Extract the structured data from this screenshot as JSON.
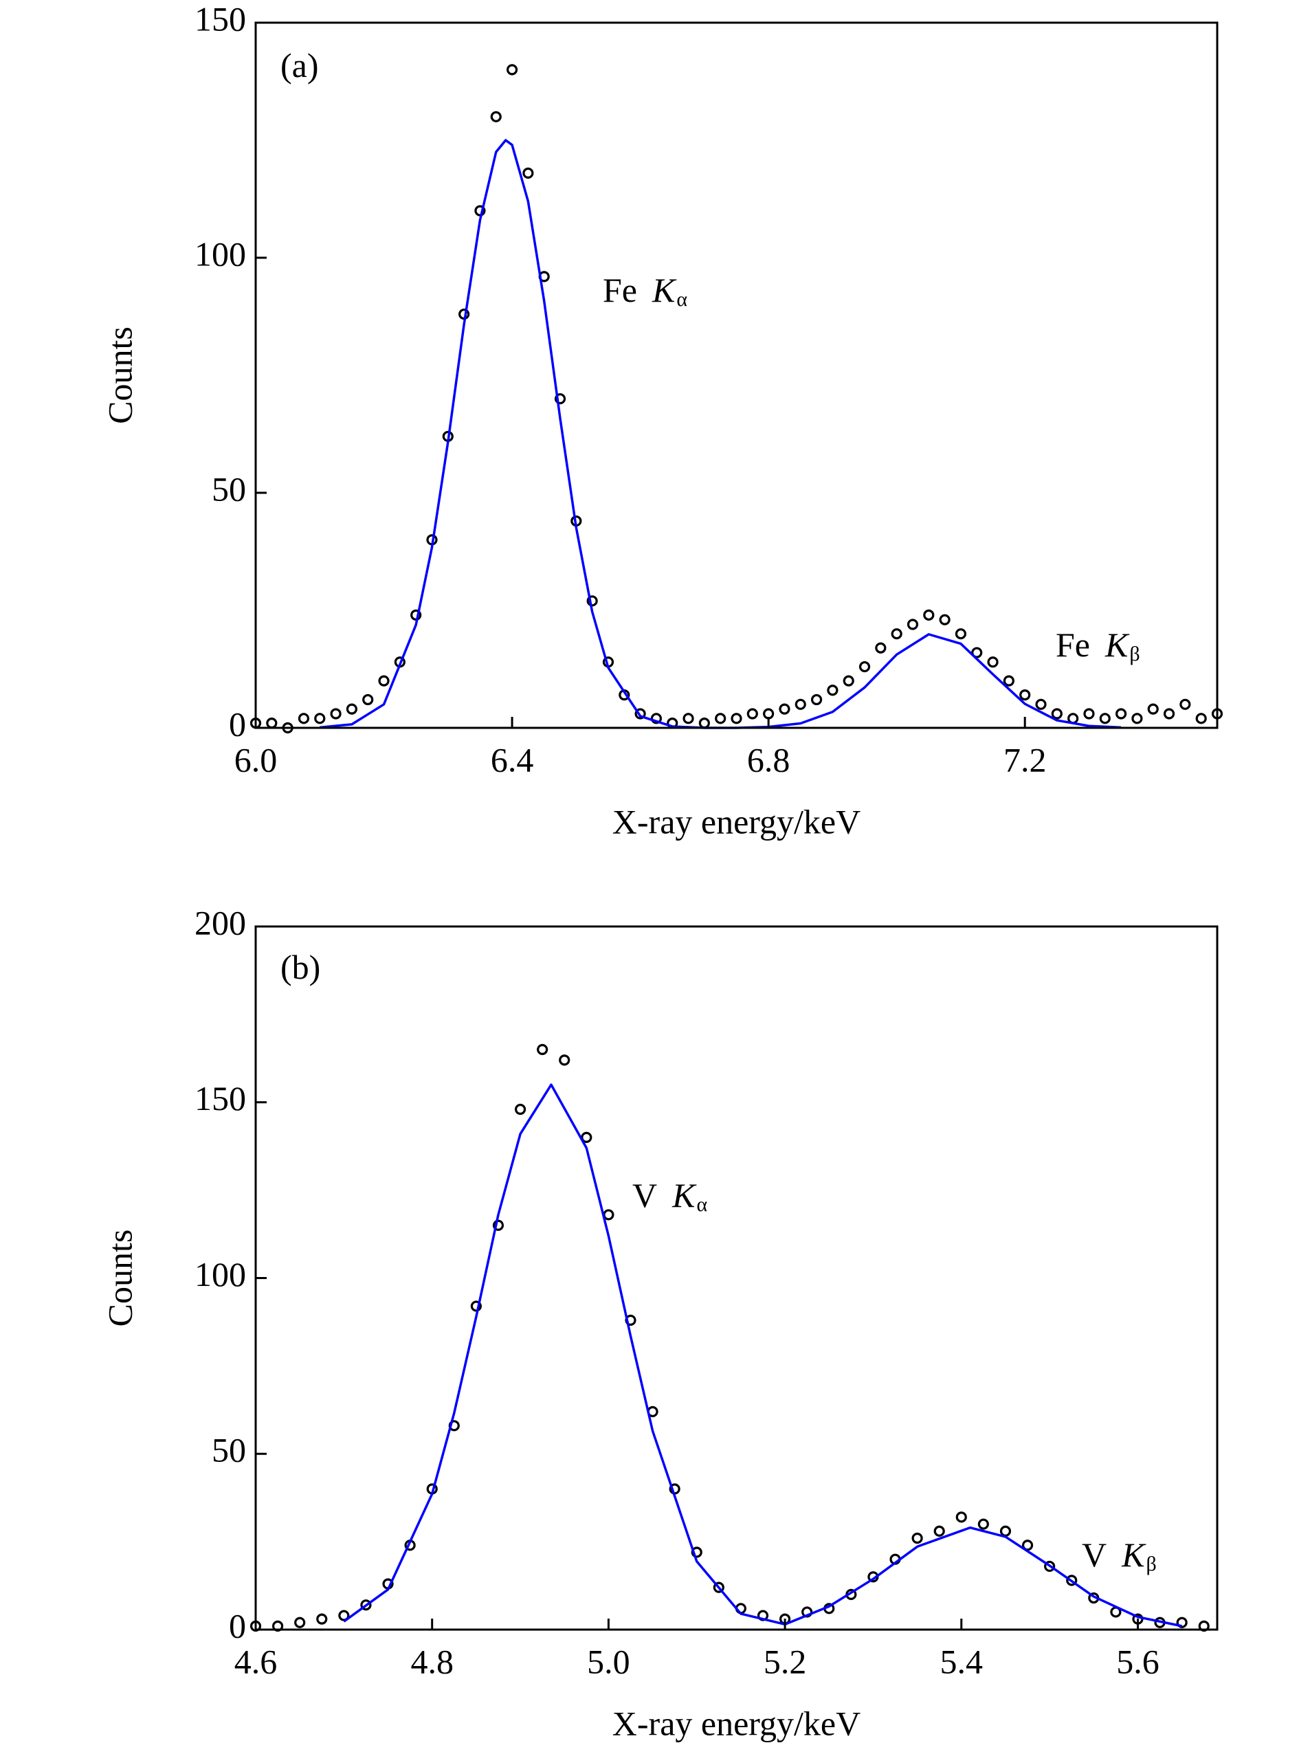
{
  "chart_data": [
    {
      "type": "scatter",
      "xlabel": "X-ray energy/keV",
      "ylabel": "Counts",
      "xlim": [
        6.0,
        7.5
      ],
      "xticks": [
        {
          "value": 6,
          "label": "6.0"
        },
        6.4,
        6.8,
        7.2
      ],
      "ylim": [
        0,
        150
      ],
      "yticks": [
        0,
        50,
        100,
        150
      ],
      "annotations": [
        {
          "text": "(a)"
        },
        {
          "text": "Fe",
          "symbol": "K",
          "sub": "α"
        },
        {
          "text": "Fe",
          "symbol": "K",
          "sub": "β"
        }
      ],
      "series": [
        {
          "type": "scatter",
          "color": "#000000",
          "x": [
            6.0,
            6.025,
            6.05,
            6.075,
            6.1,
            6.125,
            6.15,
            6.175,
            6.2,
            6.225,
            6.25,
            6.275,
            6.3,
            6.325,
            6.35,
            6.375,
            6.4,
            6.425,
            6.45,
            6.475,
            6.5,
            6.525,
            6.55,
            6.575,
            6.6,
            6.625,
            6.65,
            6.675,
            6.7,
            6.725,
            6.75,
            6.775,
            6.8,
            6.825,
            6.85,
            6.875,
            6.9,
            6.925,
            6.95,
            6.975,
            7.0,
            7.025,
            7.05,
            7.075,
            7.1,
            7.125,
            7.15,
            7.175,
            7.2,
            7.225,
            7.25,
            7.275,
            7.3,
            7.325,
            7.35,
            7.375,
            7.4,
            7.425,
            7.45,
            7.475,
            7.5
          ],
          "values": [
            1,
            1,
            0,
            2,
            2,
            3,
            4,
            6,
            10,
            14,
            24,
            40,
            62,
            88,
            110,
            130,
            140,
            118,
            96,
            70,
            44,
            27,
            14,
            7,
            3,
            2,
            1,
            2,
            1,
            2,
            2,
            3,
            3,
            4,
            5,
            6,
            8,
            10,
            13,
            17,
            20,
            22,
            24,
            23,
            20,
            16,
            14,
            10,
            7,
            5,
            3,
            2,
            3,
            2,
            3,
            2,
            4,
            3,
            5,
            2,
            3
          ]
        },
        {
          "type": "line",
          "color": "#0000ff",
          "x": [
            6.1,
            6.15,
            6.2,
            6.25,
            6.275,
            6.3,
            6.325,
            6.35,
            6.375,
            6.39,
            6.4,
            6.425,
            6.45,
            6.475,
            6.5,
            6.525,
            6.55,
            6.6,
            6.65,
            6.7,
            6.75,
            6.8,
            6.85,
            6.9,
            6.95,
            7.0,
            7.05,
            7.1,
            7.15,
            7.2,
            7.25,
            7.3,
            7.35
          ],
          "values": [
            0.1,
            0.75,
            5.0,
            21.9,
            38.4,
            60.8,
            85.8,
            108,
            122.5,
            125,
            124,
            112,
            90.8,
            65.8,
            42.6,
            24.7,
            12.8,
            2.5,
            0.3,
            0,
            0,
            0.2,
            0.95,
            3.4,
            8.6,
            15.6,
            19.9,
            17.9,
            11.4,
            5.1,
            1.6,
            0.4,
            0.1
          ]
        }
      ]
    },
    {
      "type": "scatter",
      "xlabel": "X-ray energy/keV",
      "ylabel": "Counts",
      "xlim": [
        4.6,
        5.69
      ],
      "xticks": [
        4.6,
        4.8,
        {
          "value": 5,
          "label": "5.0"
        },
        5.2,
        5.4,
        5.6
      ],
      "ylim": [
        0,
        200
      ],
      "yticks": [
        0,
        50,
        100,
        150,
        200
      ],
      "annotations": [
        {
          "text": "(b)"
        },
        {
          "text": "V",
          "symbol": "K",
          "sub": "α"
        },
        {
          "text": "V",
          "symbol": "K",
          "sub": "β"
        }
      ],
      "series": [
        {
          "type": "scatter",
          "color": "#000000",
          "x": [
            4.6,
            4.625,
            4.65,
            4.675,
            4.7,
            4.725,
            4.75,
            4.775,
            4.8,
            4.825,
            4.85,
            4.875,
            4.9,
            4.925,
            4.95,
            4.975,
            5.0,
            5.025,
            5.05,
            5.075,
            5.1,
            5.125,
            5.15,
            5.175,
            5.2,
            5.225,
            5.25,
            5.275,
            5.3,
            5.325,
            5.35,
            5.375,
            5.4,
            5.425,
            5.45,
            5.475,
            5.5,
            5.525,
            5.55,
            5.575,
            5.6,
            5.625,
            5.65,
            5.675
          ],
          "values": [
            1,
            1,
            2,
            3,
            4,
            7,
            13,
            24,
            40,
            58,
            92,
            115,
            148,
            165,
            162,
            140,
            118,
            88,
            62,
            40,
            22,
            12,
            6,
            4,
            3,
            5,
            6,
            10,
            15,
            20,
            26,
            28,
            32,
            30,
            28,
            24,
            18,
            14,
            9,
            5,
            3,
            2,
            2,
            1
          ]
        },
        {
          "type": "line",
          "color": "#0000ff",
          "x": [
            4.7,
            4.75,
            4.8,
            4.825,
            4.85,
            4.875,
            4.9,
            4.935,
            4.975,
            5.0,
            5.025,
            5.05,
            5.1,
            5.15,
            5.2,
            5.25,
            5.3,
            5.35,
            5.41,
            5.45,
            5.5,
            5.55,
            5.6,
            5.65
          ],
          "values": [
            2.3,
            11.4,
            38.6,
            61.6,
            89,
            118,
            141,
            155,
            137,
            112,
            83.5,
            56.5,
            19.4,
            4.5,
            1.5,
            6.6,
            14.4,
            23.6,
            29,
            26.4,
            18.2,
            9.4,
            3.6,
            1.0
          ]
        }
      ]
    }
  ]
}
